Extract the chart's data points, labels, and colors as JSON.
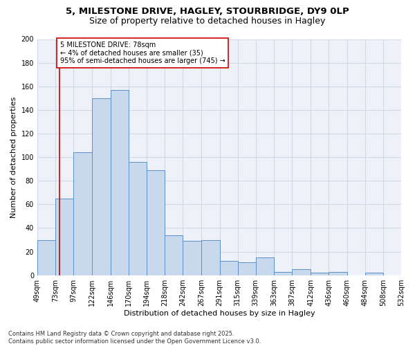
{
  "title_line1": "5, MILESTONE DRIVE, HAGLEY, STOURBRIDGE, DY9 0LP",
  "title_line2": "Size of property relative to detached houses in Hagley",
  "xlabel": "Distribution of detached houses by size in Hagley",
  "ylabel": "Number of detached properties",
  "bar_values": [
    30,
    65,
    104,
    150,
    157,
    96,
    89,
    34,
    29,
    30,
    12,
    11,
    15,
    3,
    5,
    2,
    3,
    0,
    2,
    0
  ],
  "bin_edges": [
    49,
    73,
    97,
    122,
    146,
    170,
    194,
    218,
    242,
    267,
    291,
    315,
    339,
    363,
    387,
    412,
    436,
    460,
    484,
    508,
    532
  ],
  "tick_labels": [
    "49sqm",
    "73sqm",
    "97sqm",
    "122sqm",
    "146sqm",
    "170sqm",
    "194sqm",
    "218sqm",
    "242sqm",
    "267sqm",
    "291sqm",
    "315sqm",
    "339sqm",
    "363sqm",
    "387sqm",
    "412sqm",
    "436sqm",
    "460sqm",
    "484sqm",
    "508sqm",
    "532sqm"
  ],
  "bar_color": "#c9d9ed",
  "bar_edge_color": "#5b8fc9",
  "grid_color": "#d0d8e8",
  "vline_x": 78,
  "vline_color": "#cc0000",
  "annotation_line1": "5 MILESTONE DRIVE: 78sqm",
  "annotation_line2": "← 4% of detached houses are smaller (35)",
  "annotation_line3": "95% of semi-detached houses are larger (745) →",
  "annotation_box_color": "#ffffff",
  "annotation_box_edge": "#cc0000",
  "ylim": [
    0,
    200
  ],
  "yticks": [
    0,
    20,
    40,
    60,
    80,
    100,
    120,
    140,
    160,
    180,
    200
  ],
  "footer_line1": "Contains HM Land Registry data © Crown copyright and database right 2025.",
  "footer_line2": "Contains public sector information licensed under the Open Government Licence v3.0.",
  "bg_color": "#eef2f8",
  "fig_bg_color": "#ffffff",
  "title_fontsize": 9.5,
  "subtitle_fontsize": 9,
  "axis_label_fontsize": 8,
  "tick_fontsize": 7,
  "annotation_fontsize": 7,
  "footer_fontsize": 6
}
